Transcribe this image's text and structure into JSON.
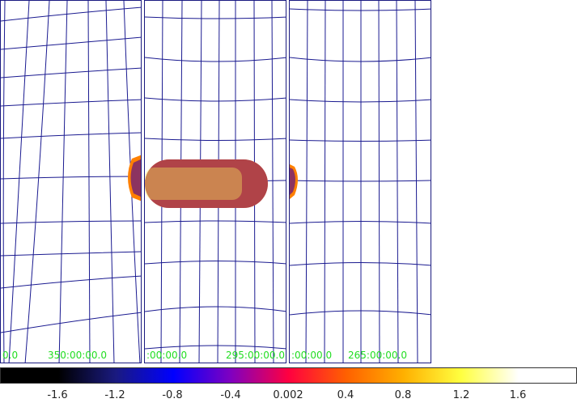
{
  "panels": [
    {
      "id": "left",
      "coords": [
        "0.0",
        "350:00:00.0"
      ]
    },
    {
      "id": "mid",
      "coords": [
        ":00:00.0",
        "295:00:00.0"
      ]
    },
    {
      "id": "right",
      "coords": [
        ":00:00.0",
        "265:00:00.0"
      ]
    }
  ],
  "colorbar": {
    "ticks": [
      "-1.6",
      "-1.2",
      "-0.8",
      "-0.4",
      "0.002",
      "0.4",
      "0.8",
      "1.2",
      "1.6"
    ],
    "stops": [
      "#000000",
      "#000000",
      "#1a1a80",
      "#0000ff",
      "#8000c0",
      "#ff0040",
      "#ff6000",
      "#ffb000",
      "#ffff40",
      "#ffffff",
      "#ffffff"
    ]
  },
  "colors": {
    "grid": "#1a1a90",
    "coord_text": "#22dd22"
  }
}
